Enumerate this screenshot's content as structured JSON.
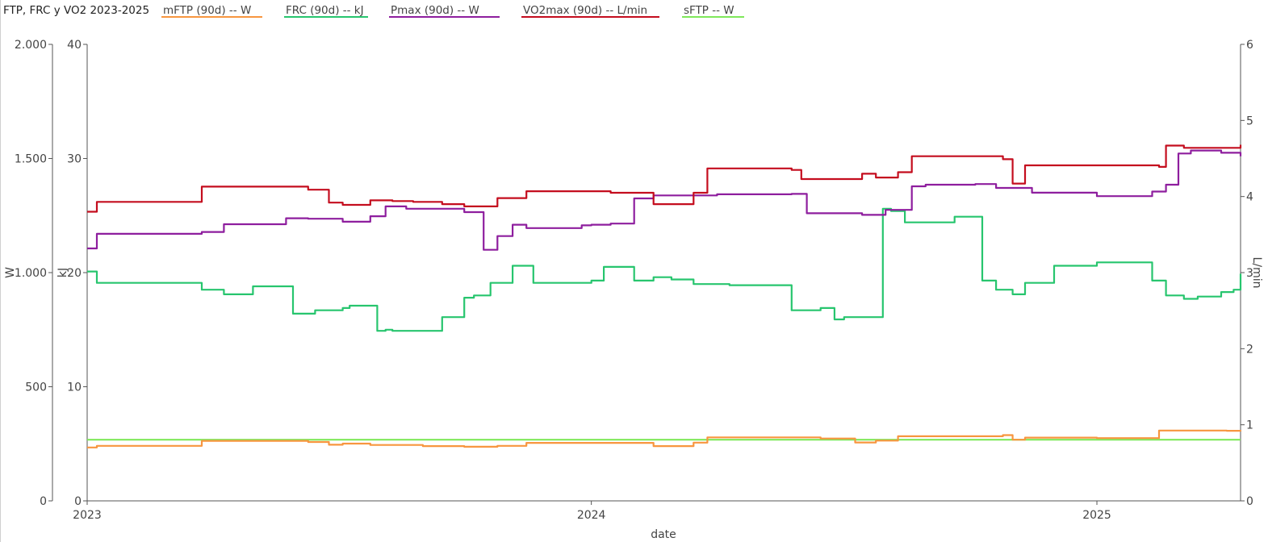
{
  "chart_data": {
    "type": "line",
    "title": "FTP, FRC y VO2 2023-2025",
    "xlabel": "date",
    "x_ticks": [
      "2023",
      "2024",
      "2025"
    ],
    "xlim": [
      "2023-01-01",
      "2025-04-15"
    ],
    "axes": [
      {
        "id": "W",
        "label": "W",
        "side": "left",
        "range": [
          0,
          2000
        ],
        "ticks": [
          0,
          500,
          1000,
          1500,
          2000
        ],
        "tick_labels": [
          "0",
          "500",
          "1.000",
          "1.500",
          "2.000"
        ]
      },
      {
        "id": "kJ",
        "label": "kJ",
        "side": "left",
        "range": [
          0,
          40
        ],
        "ticks": [
          0,
          10,
          20,
          30,
          40
        ],
        "tick_labels": [
          "0",
          "10",
          "20",
          "30",
          "40"
        ]
      },
      {
        "id": "Lmin",
        "label": "L/min",
        "side": "right",
        "range": [
          0,
          6
        ],
        "ticks": [
          0,
          1,
          2,
          3,
          4,
          5,
          6
        ],
        "tick_labels": [
          "0",
          "1",
          "2",
          "3",
          "4",
          "5",
          "6"
        ]
      }
    ],
    "legend_position": "top",
    "series": [
      {
        "name": "mFTP (90d)  -- W",
        "axis": "W",
        "color": "#f7963f",
        "x": [
          "2023-01-01",
          "2023-01-08",
          "2023-03-25",
          "2023-06-10",
          "2023-06-25",
          "2023-07-05",
          "2023-07-25",
          "2023-09-01",
          "2023-10-01",
          "2023-10-25",
          "2023-11-15",
          "2024-02-15",
          "2024-03-15",
          "2024-03-25",
          "2024-06-15",
          "2024-07-10",
          "2024-07-25",
          "2024-08-10",
          "2024-10-25",
          "2024-11-01",
          "2024-11-10",
          "2025-01-01",
          "2025-02-15",
          "2025-04-05",
          "2025-04-15"
        ],
        "y": [
          234,
          241,
          263,
          258,
          246,
          251,
          245,
          240,
          237,
          241,
          254,
          240,
          255,
          278,
          273,
          256,
          264,
          283,
          288,
          268,
          277,
          275,
          308,
          307,
          305
        ]
      },
      {
        "name": "FRC (90d)  -- kJ",
        "axis": "kJ",
        "color": "#27c56e",
        "x": [
          "2023-01-01",
          "2023-01-08",
          "2023-03-25",
          "2023-04-10",
          "2023-05-01",
          "2023-05-30",
          "2023-06-15",
          "2023-07-05",
          "2023-07-10",
          "2023-07-30",
          "2023-08-05",
          "2023-08-10",
          "2023-09-15",
          "2023-10-01",
          "2023-10-08",
          "2023-10-20",
          "2023-11-05",
          "2023-11-20",
          "2024-01-01",
          "2024-01-10",
          "2024-02-01",
          "2024-02-15",
          "2024-02-28",
          "2024-03-15",
          "2024-04-10",
          "2024-05-25",
          "2024-06-15",
          "2024-06-25",
          "2024-07-02",
          "2024-07-30",
          "2024-08-05",
          "2024-08-15",
          "2024-09-20",
          "2024-09-30",
          "2024-10-10",
          "2024-10-20",
          "2024-11-01",
          "2024-11-10",
          "2024-12-01",
          "2025-01-01",
          "2025-02-10",
          "2025-02-20",
          "2025-03-05",
          "2025-03-15",
          "2025-04-01",
          "2025-04-10",
          "2025-04-15"
        ],
        "y": [
          20.1,
          19.1,
          18.5,
          18.1,
          18.8,
          16.4,
          16.7,
          16.9,
          17.1,
          14.9,
          15.0,
          14.9,
          16.1,
          17.8,
          18.0,
          19.1,
          20.6,
          19.1,
          19.3,
          20.5,
          19.3,
          19.6,
          19.4,
          19.0,
          18.9,
          16.7,
          16.9,
          15.9,
          16.1,
          25.6,
          25.4,
          24.4,
          24.9,
          24.9,
          19.3,
          18.5,
          18.1,
          19.1,
          20.6,
          20.9,
          19.3,
          18.0,
          17.7,
          17.9,
          18.3,
          18.5,
          19.9
        ]
      },
      {
        "name": "Pmax (90d)  -- W",
        "axis": "W",
        "color": "#8e1e9e",
        "x": [
          "2023-01-01",
          "2023-01-08",
          "2023-03-25",
          "2023-04-10",
          "2023-05-25",
          "2023-06-10",
          "2023-07-05",
          "2023-07-25",
          "2023-08-05",
          "2023-08-20",
          "2023-10-01",
          "2023-10-15",
          "2023-10-25",
          "2023-11-05",
          "2023-11-15",
          "2023-12-25",
          "2024-01-01",
          "2024-01-15",
          "2024-02-01",
          "2024-02-15",
          "2024-04-01",
          "2024-05-25",
          "2024-06-05",
          "2024-07-15",
          "2024-08-01",
          "2024-08-20",
          "2024-08-30",
          "2024-10-05",
          "2024-10-20",
          "2024-11-15",
          "2025-01-01",
          "2025-02-10",
          "2025-02-20",
          "2025-03-01",
          "2025-03-10",
          "2025-04-01",
          "2025-04-15"
        ],
        "y": [
          1106,
          1170,
          1178,
          1212,
          1238,
          1236,
          1223,
          1247,
          1290,
          1280,
          1265,
          1100,
          1160,
          1210,
          1195,
          1207,
          1210,
          1215,
          1325,
          1338,
          1343,
          1345,
          1260,
          1253,
          1275,
          1378,
          1385,
          1388,
          1371,
          1350,
          1335,
          1355,
          1385,
          1522,
          1535,
          1525,
          1510
        ]
      },
      {
        "name": "VO2max (90d)  -- L/min",
        "axis": "Lmin",
        "color": "#c40d1e",
        "x": [
          "2023-01-01",
          "2023-01-08",
          "2023-03-25",
          "2023-06-10",
          "2023-06-25",
          "2023-07-05",
          "2023-07-25",
          "2023-08-10",
          "2023-08-25",
          "2023-09-15",
          "2023-10-01",
          "2023-10-25",
          "2023-11-15",
          "2024-01-15",
          "2024-02-15",
          "2024-03-15",
          "2024-03-25",
          "2024-05-25",
          "2024-06-01",
          "2024-07-05",
          "2024-07-15",
          "2024-07-25",
          "2024-08-10",
          "2024-08-20",
          "2024-10-25",
          "2024-11-01",
          "2024-11-10",
          "2025-02-15",
          "2025-02-20",
          "2025-03-05",
          "2025-04-15"
        ],
        "y": [
          3.8,
          3.93,
          4.13,
          4.09,
          3.92,
          3.89,
          3.95,
          3.94,
          3.93,
          3.9,
          3.87,
          3.98,
          4.07,
          4.05,
          3.9,
          4.05,
          4.37,
          4.35,
          4.23,
          4.23,
          4.3,
          4.25,
          4.32,
          4.53,
          4.49,
          4.17,
          4.41,
          4.39,
          4.67,
          4.64,
          4.68
        ]
      },
      {
        "name": "sFTP  -- W",
        "axis": "W",
        "color": "#7fe85a",
        "x": [
          "2023-01-01",
          "2025-04-15"
        ],
        "y": [
          268,
          268
        ]
      }
    ]
  }
}
